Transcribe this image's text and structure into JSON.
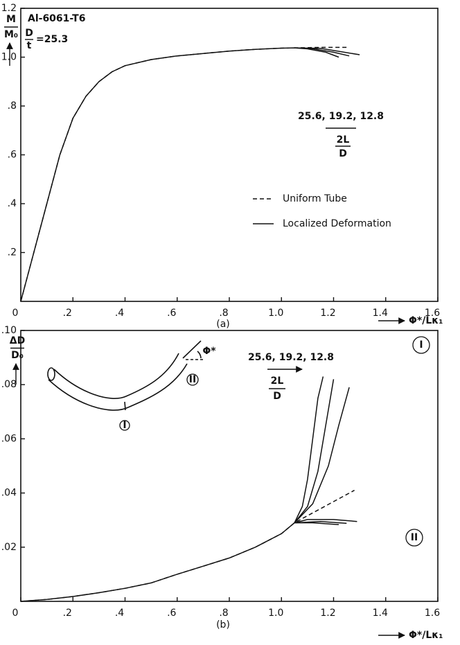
{
  "chart_data": [
    {
      "type": "line",
      "title": "Al-6061-T6",
      "y_label_top": "M",
      "y_label_bottom": "M₀",
      "x_label": "Φ*/Lκ₁",
      "caption": "(a)",
      "annotations": [
        "D",
        "t",
        "=25.3",
        "25.6, 19.2, 12.8",
        "2L",
        "D"
      ],
      "xlim": [
        0,
        1.6
      ],
      "xticks": [
        0,
        {
          "value": 0.2,
          "label": ".2"
        },
        {
          "value": 0.4,
          "label": ".4"
        },
        {
          "value": 0.6,
          "label": ".6"
        },
        {
          "value": 0.8,
          "label": ".8"
        },
        {
          "value": 1.0,
          "label": "1.0"
        },
        1.2,
        1.4,
        1.6
      ],
      "ylim": [
        0,
        1.2
      ],
      "yticks": [
        {
          "value": 0.2,
          "label": ".2"
        },
        {
          "value": 0.4,
          "label": ".4"
        },
        {
          "value": 0.6,
          "label": ".6"
        },
        {
          "value": 0.8,
          "label": ".8"
        },
        {
          "value": 1.0,
          "label": "1.0"
        },
        1.2
      ],
      "series": [
        {
          "name": "Uniform Tube",
          "style": "dashed",
          "color": "#111",
          "x": [
            0,
            0.05,
            0.1,
            0.15,
            0.2,
            0.25,
            0.3,
            0.35,
            0.4,
            0.5,
            0.6,
            0.7,
            0.8,
            0.9,
            1.0,
            1.05,
            1.15,
            1.25
          ],
          "values": [
            0,
            0.2,
            0.4,
            0.6,
            0.75,
            0.84,
            0.9,
            0.94,
            0.965,
            0.99,
            1.005,
            1.015,
            1.025,
            1.032,
            1.037,
            1.038,
            1.04,
            1.04
          ]
        },
        {
          "name": "Localized Deformation",
          "style": "solid",
          "color": "#111",
          "x": [
            0,
            0.05,
            0.1,
            0.15,
            0.2,
            0.25,
            0.3,
            0.35,
            0.4,
            0.5,
            0.6,
            0.7,
            0.8,
            0.9,
            1.0,
            1.05,
            1.15,
            1.3
          ],
          "values": [
            0,
            0.2,
            0.4,
            0.6,
            0.75,
            0.84,
            0.9,
            0.94,
            0.965,
            0.99,
            1.005,
            1.015,
            1.025,
            1.032,
            1.037,
            1.038,
            1.036,
            1.01
          ]
        },
        {
          "style": "solid",
          "color": "#111",
          "x": [
            1.05,
            1.12,
            1.2,
            1.26
          ],
          "values": [
            1.038,
            1.035,
            1.02,
            1.005
          ]
        },
        {
          "style": "solid",
          "color": "#111",
          "x": [
            1.05,
            1.1,
            1.17,
            1.22
          ],
          "values": [
            1.038,
            1.034,
            1.02,
            1.0
          ]
        }
      ]
    },
    {
      "type": "line",
      "y_label_top": "ΔD",
      "y_label_bottom": "D₀",
      "x_label": "Φ*/Lκ₁",
      "caption": "(b)",
      "annotations": [
        "25.6, 19.2, 12.8",
        "2L",
        "D",
        "I",
        "II",
        "I",
        "II",
        "Φ*"
      ],
      "xlim": [
        0,
        1.6
      ],
      "xticks": [
        0,
        {
          "value": 0.2,
          "label": ".2"
        },
        {
          "value": 0.4,
          "label": ".4"
        },
        {
          "value": 0.6,
          "label": ".6"
        },
        {
          "value": 0.8,
          "label": ".8"
        },
        {
          "value": 1.0,
          "label": "1.0"
        },
        1.2,
        1.4,
        1.6
      ],
      "ylim": [
        0,
        0.1
      ],
      "yticks": [
        {
          "value": 0.02,
          "label": ".02"
        },
        {
          "value": 0.04,
          "label": ".04"
        },
        {
          "value": 0.06,
          "label": ".06"
        },
        {
          "value": 0.08,
          "label": ".08"
        },
        {
          "value": 0.1,
          "label": ".10"
        }
      ],
      "series": [
        {
          "style": "dashed",
          "color": "#111",
          "x": [
            0,
            0.1,
            0.2,
            0.3,
            0.4,
            0.5,
            0.6,
            0.7,
            0.8,
            0.9,
            1.0,
            1.05,
            1.28
          ],
          "values": [
            0,
            0.0007,
            0.0018,
            0.0032,
            0.0048,
            0.0068,
            0.01,
            0.013,
            0.016,
            0.02,
            0.025,
            0.029,
            0.041
          ]
        },
        {
          "style": "solid",
          "color": "#111",
          "x": [
            0,
            0.1,
            0.2,
            0.3,
            0.4,
            0.5,
            0.6,
            0.7,
            0.8,
            0.9,
            1.0,
            1.05
          ],
          "values": [
            0,
            0.0007,
            0.0018,
            0.0032,
            0.0048,
            0.0068,
            0.01,
            0.013,
            0.016,
            0.02,
            0.025,
            0.029
          ]
        },
        {
          "style": "solid",
          "color": "#111",
          "x": [
            1.05,
            1.08,
            1.1,
            1.12,
            1.14,
            1.16
          ],
          "values": [
            0.029,
            0.035,
            0.045,
            0.06,
            0.075,
            0.083
          ]
        },
        {
          "style": "solid",
          "color": "#111",
          "x": [
            1.05,
            1.1,
            1.14,
            1.17,
            1.2
          ],
          "values": [
            0.029,
            0.035,
            0.048,
            0.065,
            0.082
          ]
        },
        {
          "style": "solid",
          "color": "#111",
          "x": [
            1.05,
            1.12,
            1.18,
            1.22,
            1.26
          ],
          "values": [
            0.029,
            0.036,
            0.05,
            0.065,
            0.079
          ]
        },
        {
          "style": "solid",
          "color": "#111",
          "x": [
            1.05,
            1.1,
            1.2,
            1.29
          ],
          "values": [
            0.029,
            0.0302,
            0.0302,
            0.0295
          ]
        },
        {
          "style": "solid",
          "color": "#111",
          "x": [
            1.05,
            1.15,
            1.25
          ],
          "values": [
            0.029,
            0.0295,
            0.0288
          ]
        },
        {
          "style": "solid",
          "color": "#111",
          "x": [
            1.05,
            1.12,
            1.22
          ],
          "values": [
            0.029,
            0.029,
            0.0283
          ]
        }
      ]
    }
  ]
}
